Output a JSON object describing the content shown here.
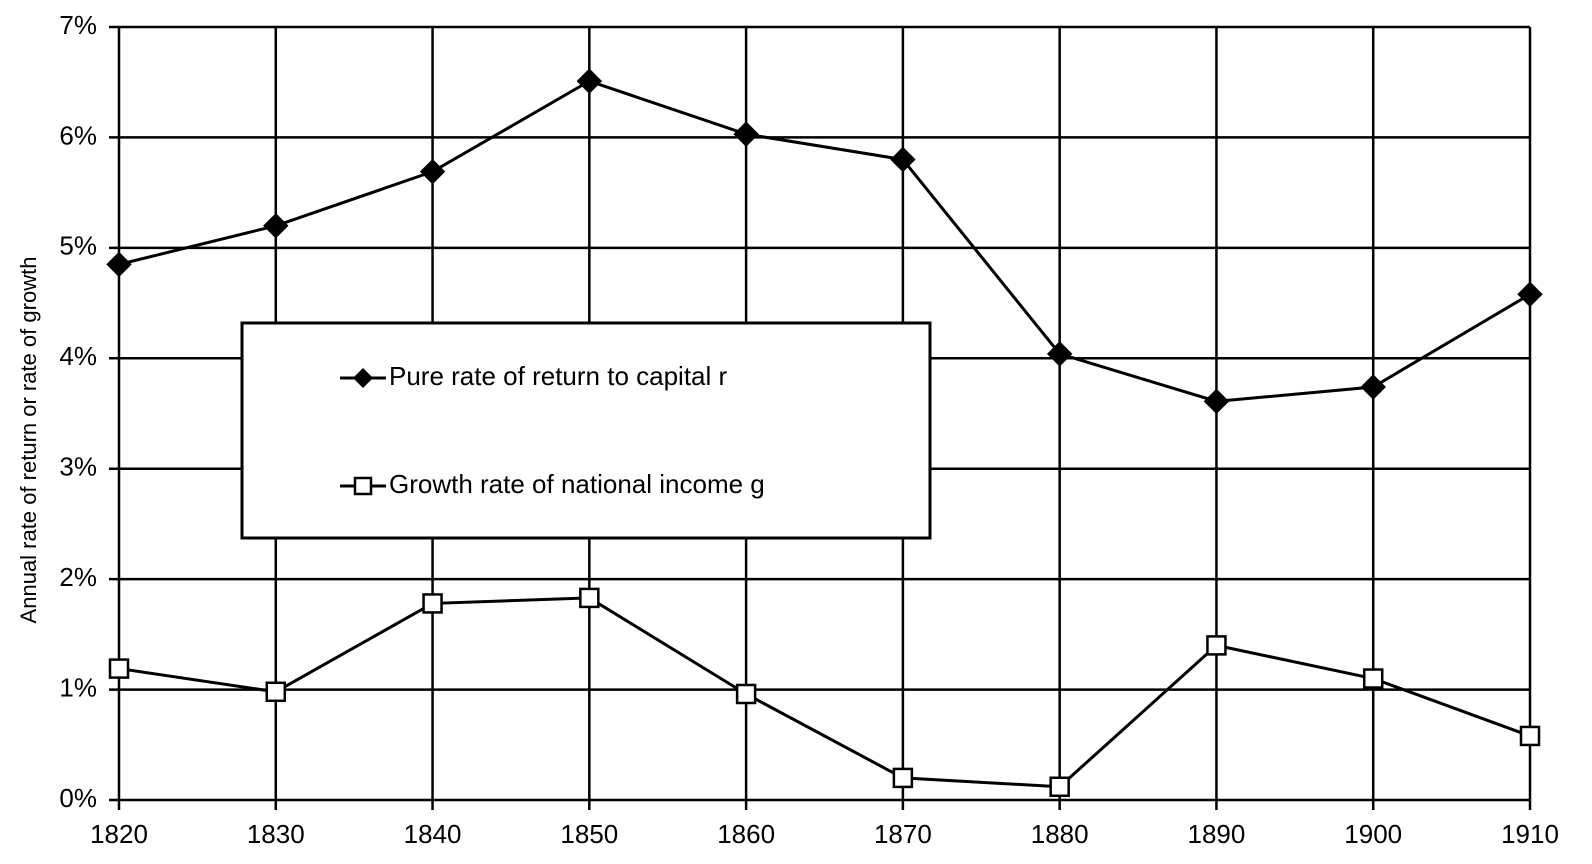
{
  "chart_data": {
    "type": "line",
    "y_label": "Annual rate of return or rate of growth",
    "x": [
      1820,
      1830,
      1840,
      1850,
      1860,
      1870,
      1880,
      1890,
      1900,
      1910
    ],
    "series": [
      {
        "name": "Pure rate of return to capital r",
        "color": "#000000",
        "marker": "diamond",
        "values": [
          4.85,
          5.2,
          5.69,
          6.51,
          6.03,
          5.8,
          4.04,
          3.61,
          3.74,
          4.58
        ]
      },
      {
        "name": "Growth rate of national income g",
        "color": "#000000",
        "marker": "square",
        "values": [
          1.19,
          0.98,
          1.78,
          1.83,
          0.96,
          0.2,
          0.12,
          1.4,
          1.1,
          0.58
        ]
      }
    ],
    "xlim": [
      1820,
      1910
    ],
    "xticks": [
      1820,
      1830,
      1840,
      1850,
      1860,
      1870,
      1880,
      1890,
      1900,
      1910
    ],
    "ylim": [
      0,
      7
    ],
    "yticks": [
      {
        "value": 0,
        "label": "0%"
      },
      {
        "value": 1,
        "label": "1%"
      },
      {
        "value": 2,
        "label": "2%"
      },
      {
        "value": 3,
        "label": "3%"
      },
      {
        "value": 4,
        "label": "4%"
      },
      {
        "value": 5,
        "label": "5%"
      },
      {
        "value": 6,
        "label": "6%"
      },
      {
        "value": 7,
        "label": "7%"
      }
    ],
    "grid": true
  }
}
